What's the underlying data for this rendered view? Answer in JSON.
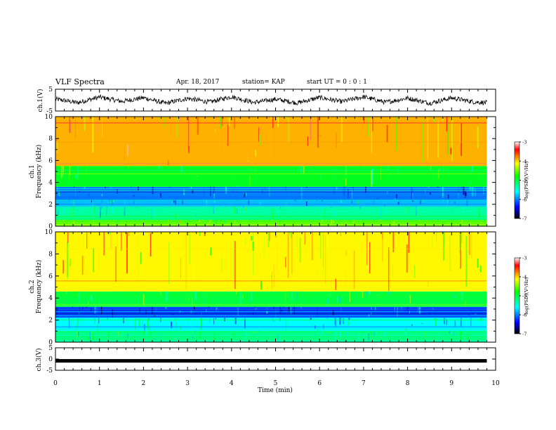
{
  "header": {
    "title": "VLF Spectra",
    "date": "Apr. 18, 2017",
    "station": "station= KAP",
    "start_ut": "start  UT =   0 : 0  : 1"
  },
  "colors": {
    "colormap": [
      "#000000",
      "#0000ff",
      "#00ffff",
      "#00ff00",
      "#ffff00",
      "#ff0000",
      "#ffffff"
    ]
  },
  "chart_data": [
    {
      "type": "line",
      "panel": "ch1-waveform",
      "ylabel": "ch.1(V)",
      "ylim": [
        -5,
        5
      ],
      "ytick_labels": [
        "5",
        "-5"
      ],
      "xlim": [
        0,
        10
      ],
      "note_values": "noisy voltage trace oscillating roughly between -2.5 and 2.5 V over 0 to 9.8 min",
      "x": [
        0,
        0.5,
        1,
        1.5,
        2,
        2.5,
        3,
        3.5,
        4,
        4.5,
        5,
        5.5,
        6,
        6.5,
        7,
        7.5,
        8,
        8.5,
        9,
        9.5,
        9.8
      ],
      "y": [
        0.5,
        -1.2,
        1.4,
        -0.6,
        1.1,
        -1.5,
        0.8,
        -0.9,
        1.6,
        -1.1,
        0.4,
        -1.3,
        1.2,
        -0.7,
        1.5,
        -1.0,
        0.9,
        -1.4,
        1.0,
        -0.8,
        -1.2
      ]
    },
    {
      "type": "heatmap",
      "panel": "ch1-spectrogram",
      "ylabel": "Frequency (kHz)",
      "ylabel_channel": "ch.1",
      "xlim": [
        0,
        10
      ],
      "ylim": [
        0,
        10
      ],
      "yticks": [
        "0",
        "2",
        "4",
        "6",
        "8",
        "10"
      ],
      "colorbar_label": "log(PSD)(V²/Hz)",
      "colorbar_ticks": [
        "-3",
        "-4",
        "-5",
        "-6",
        "-7"
      ],
      "clim": [
        -7,
        -3
      ],
      "bands": [
        {
          "f": [
            0,
            0.6
          ],
          "level": -4.6
        },
        {
          "f": [
            0.6,
            1.8
          ],
          "level": -5.3
        },
        {
          "f": [
            1.8,
            2.4
          ],
          "level": -5.8
        },
        {
          "f": [
            2.4,
            3.6
          ],
          "level": -6.0
        },
        {
          "f": [
            3.6,
            5.5
          ],
          "level": -4.9
        },
        {
          "f": [
            5.5,
            10
          ],
          "level": -3.9
        }
      ]
    },
    {
      "type": "heatmap",
      "panel": "ch2-spectrogram",
      "ylabel": "Frequency (kHz)",
      "ylabel_channel": "ch.2",
      "xlim": [
        0,
        10
      ],
      "ylim": [
        0,
        10
      ],
      "yticks": [
        "0",
        "2",
        "4",
        "6",
        "8",
        "10"
      ],
      "colorbar_label": "log(PSD)(V²/Hz)",
      "colorbar_ticks": [
        "-3",
        "-4",
        "-5",
        "-6",
        "-7"
      ],
      "clim": [
        -7,
        -3
      ],
      "bands": [
        {
          "f": [
            0,
            1.0
          ],
          "level": -5.2
        },
        {
          "f": [
            1.0,
            2.2
          ],
          "level": -5.6
        },
        {
          "f": [
            2.2,
            3.2
          ],
          "level": -6.2
        },
        {
          "f": [
            3.2,
            4.6
          ],
          "level": -5.0
        },
        {
          "f": [
            4.6,
            10
          ],
          "level": -4.1
        }
      ]
    },
    {
      "type": "line",
      "panel": "ch3-waveform",
      "ylabel": "ch.3(V)",
      "ylim": [
        -5,
        5
      ],
      "ytick_labels": [
        "5",
        "0",
        "-5"
      ],
      "xlim": [
        0,
        10
      ],
      "x": [
        0,
        9.8
      ],
      "y": [
        -0.8,
        -0.8
      ]
    }
  ],
  "x_axis": {
    "label": "Time  (min)",
    "ticks": [
      "0",
      "1",
      "2",
      "3",
      "4",
      "5",
      "6",
      "7",
      "8",
      "9",
      "10"
    ]
  }
}
